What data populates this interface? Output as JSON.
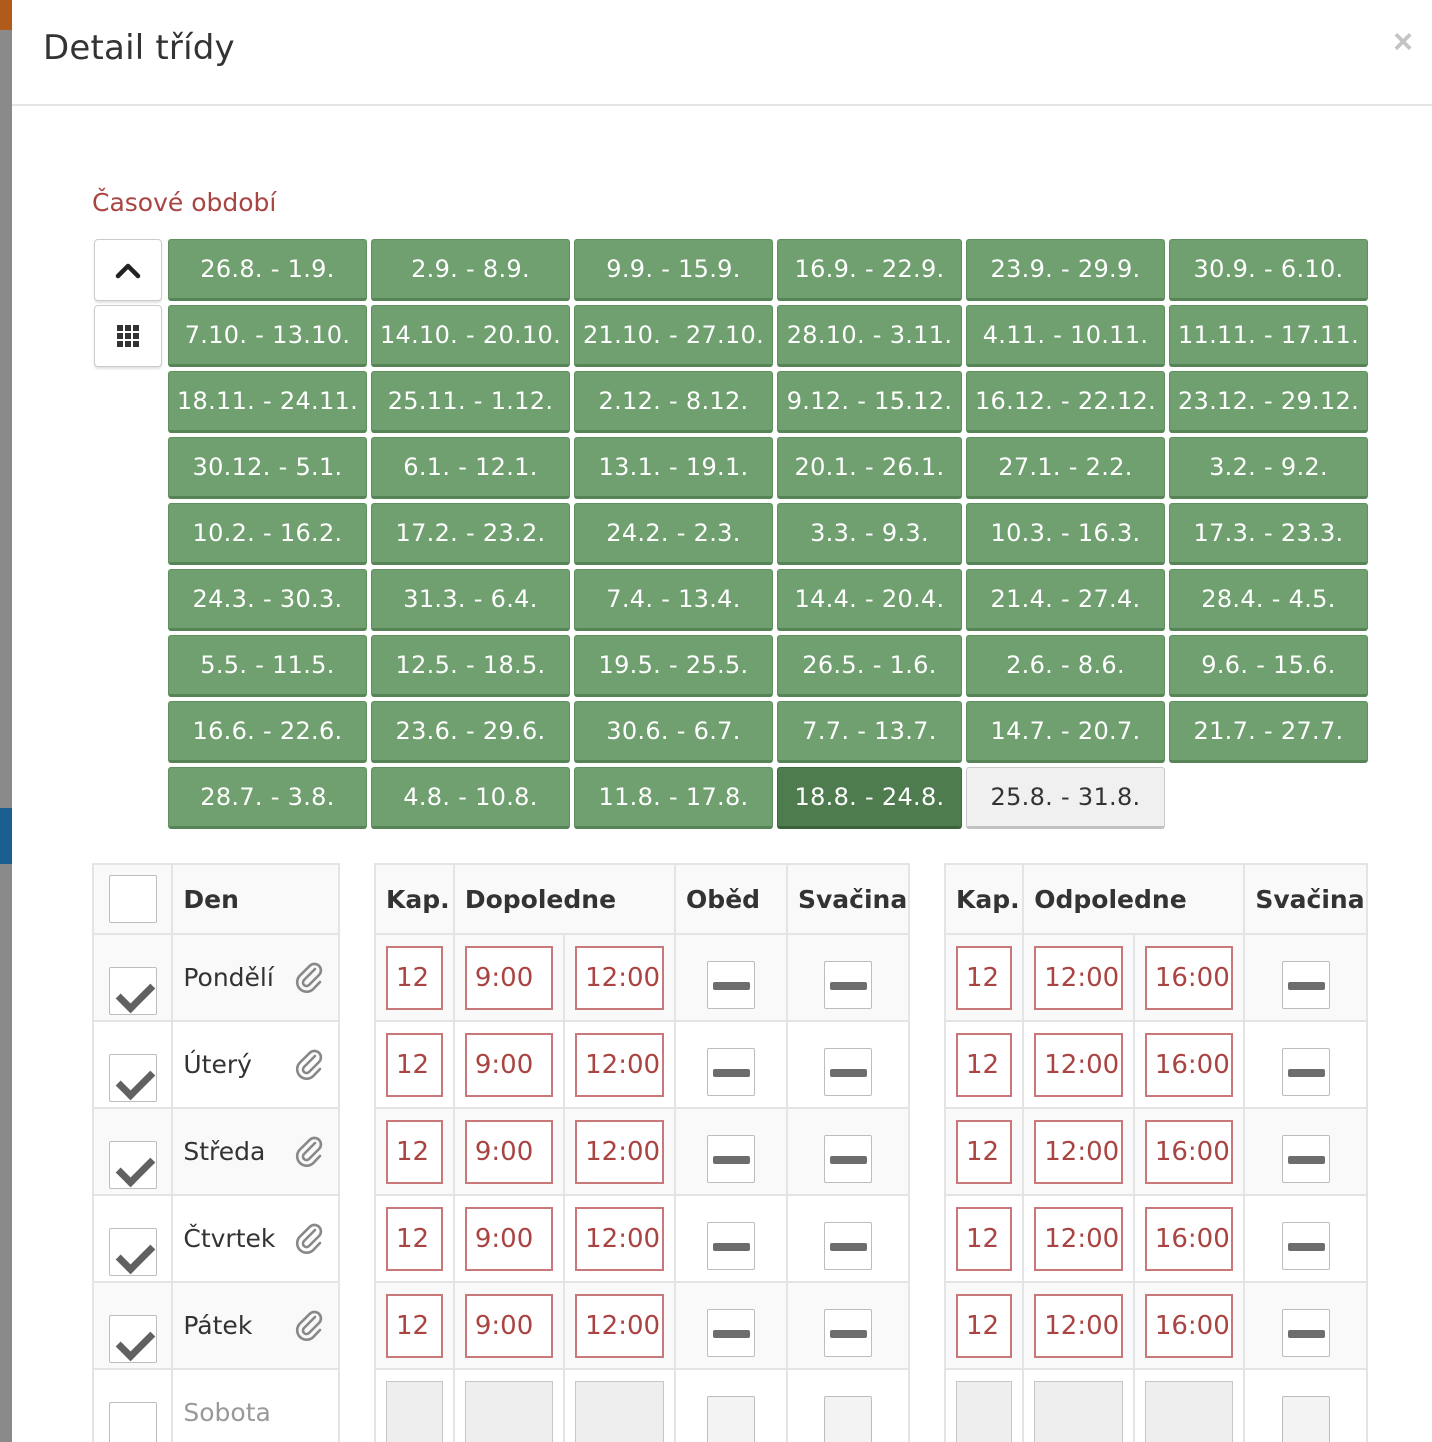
{
  "modal": {
    "title": "Detail třídy",
    "close_label": "×"
  },
  "period": {
    "label": "Časové období",
    "weeks": [
      "26.8. - 1.9.",
      "2.9. - 8.9.",
      "9.9. - 15.9.",
      "16.9. - 22.9.",
      "23.9. - 29.9.",
      "30.9. - 6.10.",
      "7.10. - 13.10.",
      "14.10. - 20.10.",
      "21.10. - 27.10.",
      "28.10. - 3.11.",
      "4.11. - 10.11.",
      "11.11. - 17.11.",
      "18.11. - 24.11.",
      "25.11. - 1.12.",
      "2.12. - 8.12.",
      "9.12. - 15.12.",
      "16.12. - 22.12.",
      "23.12. - 29.12.",
      "30.12. - 5.1.",
      "6.1. - 12.1.",
      "13.1. - 19.1.",
      "20.1. - 26.1.",
      "27.1. - 2.2.",
      "3.2. - 9.2.",
      "10.2. - 16.2.",
      "17.2. - 23.2.",
      "24.2. - 2.3.",
      "3.3. - 9.3.",
      "10.3. - 16.3.",
      "17.3. - 23.3.",
      "24.3. - 30.3.",
      "31.3. - 6.4.",
      "7.4. - 13.4.",
      "14.4. - 20.4.",
      "21.4. - 27.4.",
      "28.4. - 4.5.",
      "5.5. - 11.5.",
      "12.5. - 18.5.",
      "19.5. - 25.5.",
      "26.5. - 1.6.",
      "2.6. - 8.6.",
      "9.6. - 15.6.",
      "16.6. - 22.6.",
      "23.6. - 29.6.",
      "30.6. - 6.7.",
      "7.7. - 13.7.",
      "14.7. - 20.7.",
      "21.7. - 27.7.",
      "28.7. - 3.8.",
      "4.8. - 10.8.",
      "11.8. - 17.8.",
      "18.8. - 24.8.",
      "25.8. - 31.8."
    ],
    "selected_week": "18.8. - 24.8.",
    "inactive_week": "25.8. - 31.8."
  },
  "days_table": {
    "header": "Den"
  },
  "morning_table": {
    "cap_header": "Kap.",
    "time_header": "Dopoledne",
    "lunch_header": "Oběd",
    "snack_header": "Svačina"
  },
  "afternoon_table": {
    "cap_header": "Kap.",
    "time_header": "Odpoledne",
    "snack_header": "Svačina"
  },
  "days": [
    {
      "name": "Pondělí",
      "checked": true,
      "cap_am": "12",
      "from_am": "9:00",
      "to_am": "12:00",
      "cap_pm": "12",
      "from_pm": "12:00",
      "to_pm": "16:00"
    },
    {
      "name": "Úterý",
      "checked": true,
      "cap_am": "12",
      "from_am": "9:00",
      "to_am": "12:00",
      "cap_pm": "12",
      "from_pm": "12:00",
      "to_pm": "16:00"
    },
    {
      "name": "Středa",
      "checked": true,
      "cap_am": "12",
      "from_am": "9:00",
      "to_am": "12:00",
      "cap_pm": "12",
      "from_pm": "12:00",
      "to_pm": "16:00"
    },
    {
      "name": "Čtvrtek",
      "checked": true,
      "cap_am": "12",
      "from_am": "9:00",
      "to_am": "12:00",
      "cap_pm": "12",
      "from_pm": "12:00",
      "to_pm": "16:00"
    },
    {
      "name": "Pátek",
      "checked": true,
      "cap_am": "12",
      "from_am": "9:00",
      "to_am": "12:00",
      "cap_pm": "12",
      "from_pm": "12:00",
      "to_pm": "16:00"
    },
    {
      "name": "Sobota",
      "checked": false,
      "cap_am": "",
      "from_am": "",
      "to_am": "",
      "cap_pm": "",
      "from_pm": "",
      "to_pm": ""
    }
  ],
  "icons": {
    "up": "chevron-up-icon",
    "grid": "grid-icon",
    "attachment": "paperclip-icon"
  },
  "colors": {
    "week_green": "#70a070",
    "week_active": "#4e7c4e",
    "error_red": "#a94442"
  }
}
